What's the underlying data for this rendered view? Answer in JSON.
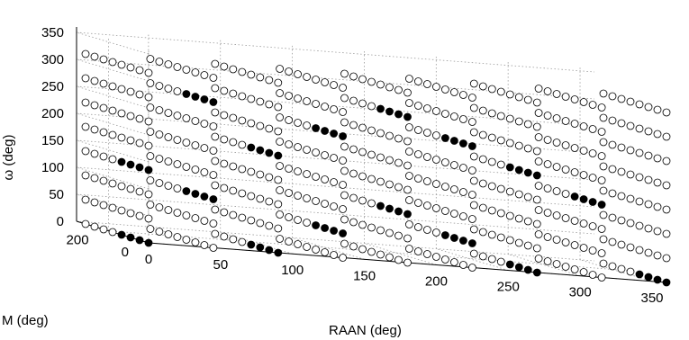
{
  "chart_data": {
    "type": "scatter",
    "projection": "3d",
    "xlabel": "RAAN (deg)",
    "ylabel": "M (deg)",
    "zlabel": "ω (deg)",
    "x_ticks": [
      "0",
      "50",
      "100",
      "150",
      "200",
      "250",
      "300",
      "350"
    ],
    "y_ticks": [
      "0",
      "200"
    ],
    "z_ticks": [
      "0",
      "50",
      "100",
      "150",
      "200",
      "250",
      "300",
      "350"
    ],
    "xlim": [
      0,
      360
    ],
    "ylim": [
      0,
      360
    ],
    "zlim": [
      0,
      360
    ],
    "grid": true,
    "marker_colors": {
      "selected": "#000000",
      "other": "#ffffff"
    },
    "raan_values": [
      0,
      45,
      90,
      135,
      180,
      225,
      270,
      315,
      360
    ],
    "omega_values": [
      0,
      45,
      90,
      135,
      180,
      225,
      270,
      315
    ],
    "m_values": [
      0,
      45,
      90,
      135,
      180,
      225,
      270,
      315
    ],
    "selected_points": [
      {
        "raan": 0,
        "omega": 0,
        "m": [
          0,
          45,
          90,
          135
        ]
      },
      {
        "raan": 0,
        "omega": 135,
        "m": [
          0,
          45,
          90,
          135
        ]
      },
      {
        "raan": 45,
        "omega": 90,
        "m": [
          0,
          45,
          90,
          135
        ]
      },
      {
        "raan": 45,
        "omega": 270,
        "m": [
          0,
          45,
          90,
          135
        ]
      },
      {
        "raan": 90,
        "omega": 0,
        "m": [
          0,
          45,
          90,
          135
        ]
      },
      {
        "raan": 90,
        "omega": 180,
        "m": [
          0,
          45,
          90,
          135
        ]
      },
      {
        "raan": 135,
        "omega": 45,
        "m": [
          0,
          45,
          90,
          135
        ]
      },
      {
        "raan": 135,
        "omega": 225,
        "m": [
          0,
          45,
          90,
          135
        ]
      },
      {
        "raan": 180,
        "omega": 90,
        "m": [
          0,
          45,
          90,
          135
        ]
      },
      {
        "raan": 180,
        "omega": 270,
        "m": [
          0,
          45,
          90,
          135
        ]
      },
      {
        "raan": 225,
        "omega": 45,
        "m": [
          0,
          45,
          90,
          135
        ]
      },
      {
        "raan": 225,
        "omega": 225,
        "m": [
          0,
          45,
          90,
          135
        ]
      },
      {
        "raan": 270,
        "omega": 0,
        "m": [
          0,
          45,
          90,
          135
        ]
      },
      {
        "raan": 270,
        "omega": 180,
        "m": [
          0,
          45,
          90,
          135
        ]
      },
      {
        "raan": 315,
        "omega": 135,
        "m": [
          0,
          45,
          90,
          135
        ]
      },
      {
        "raan": 360,
        "omega": 0,
        "m": [
          0,
          45,
          90,
          135
        ]
      }
    ]
  }
}
